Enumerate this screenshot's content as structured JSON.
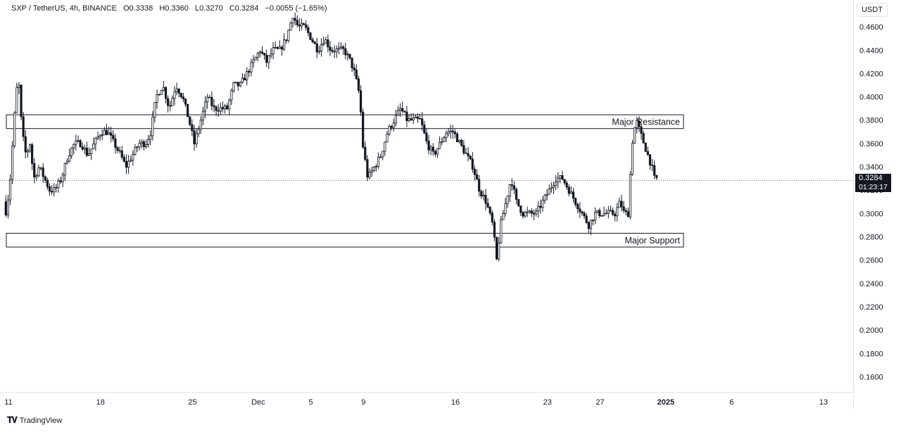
{
  "legend": {
    "symbol": "SXP / TetherUS, 4h, BINANCE",
    "open": "O0.3338",
    "high": "H0.3360",
    "low": "L0.3270",
    "close": "C0.3284",
    "change": "−0.0055 (−1.65%)"
  },
  "currency": "USDT",
  "last_price": {
    "value": "0.3284",
    "countdown": "01:23:17"
  },
  "footer": {
    "brand": "TradingView"
  },
  "chart_data": {
    "type": "candlestick",
    "symbol": "SXP / TetherUS",
    "interval": "4h",
    "exchange": "BINANCE",
    "y_ticks": [
      0.46,
      0.44,
      0.42,
      0.4,
      0.38,
      0.36,
      0.34,
      0.32,
      0.3,
      0.28,
      0.26,
      0.24,
      0.22,
      0.2,
      0.18,
      0.16
    ],
    "y_tick_labels": [
      "0.4600",
      "0.4400",
      "0.4200",
      "0.4000",
      "0.3800",
      "0.3600",
      "0.3400",
      "0.3200",
      "0.3000",
      "0.2800",
      "0.2600",
      "0.2400",
      "0.2200",
      "0.2000",
      "0.1800",
      "0.1600"
    ],
    "ylim": [
      0.147,
      0.483
    ],
    "x_ticks": [
      {
        "day": 11,
        "label": "11"
      },
      {
        "day": 18,
        "label": "18"
      },
      {
        "day": 25,
        "label": "25"
      },
      {
        "day": 30,
        "label": "Dec"
      },
      {
        "day": 34,
        "label": "5"
      },
      {
        "day": 38,
        "label": "9"
      },
      {
        "day": 45,
        "label": "16"
      },
      {
        "day": 52,
        "label": "23"
      },
      {
        "day": 56,
        "label": "27"
      },
      {
        "day": 61,
        "label": "2025"
      },
      {
        "day": 66,
        "label": "6"
      },
      {
        "day": 73,
        "label": "13"
      }
    ],
    "zones": [
      {
        "label": "Major Resistance",
        "top": 0.3846,
        "bottom": 0.3728
      },
      {
        "label": "Major Support",
        "top": 0.283,
        "bottom": 0.2712
      }
    ],
    "price_line": 0.3284,
    "price_anchors": [
      [
        10.8,
        0.31
      ],
      [
        11.0,
        0.3
      ],
      [
        11.3,
        0.33
      ],
      [
        11.6,
        0.38
      ],
      [
        11.9,
        0.42
      ],
      [
        12.2,
        0.37
      ],
      [
        12.5,
        0.35
      ],
      [
        12.8,
        0.36
      ],
      [
        13.1,
        0.33
      ],
      [
        13.5,
        0.34
      ],
      [
        13.9,
        0.33
      ],
      [
        14.3,
        0.32
      ],
      [
        14.7,
        0.32
      ],
      [
        15.2,
        0.33
      ],
      [
        15.7,
        0.35
      ],
      [
        16.2,
        0.36
      ],
      [
        16.7,
        0.36
      ],
      [
        17.2,
        0.35
      ],
      [
        17.7,
        0.36
      ],
      [
        18.2,
        0.37
      ],
      [
        18.7,
        0.37
      ],
      [
        19.2,
        0.36
      ],
      [
        19.7,
        0.35
      ],
      [
        20.1,
        0.34
      ],
      [
        20.6,
        0.35
      ],
      [
        21.1,
        0.36
      ],
      [
        21.6,
        0.36
      ],
      [
        22.0,
        0.37
      ],
      [
        22.4,
        0.4
      ],
      [
        22.9,
        0.41
      ],
      [
        23.4,
        0.39
      ],
      [
        23.9,
        0.41
      ],
      [
        24.4,
        0.4
      ],
      [
        24.9,
        0.38
      ],
      [
        25.3,
        0.36
      ],
      [
        25.8,
        0.38
      ],
      [
        26.3,
        0.4
      ],
      [
        26.8,
        0.39
      ],
      [
        27.3,
        0.39
      ],
      [
        27.8,
        0.39
      ],
      [
        28.3,
        0.41
      ],
      [
        28.8,
        0.41
      ],
      [
        29.3,
        0.42
      ],
      [
        29.8,
        0.43
      ],
      [
        30.3,
        0.44
      ],
      [
        30.8,
        0.43
      ],
      [
        31.3,
        0.44
      ],
      [
        31.8,
        0.44
      ],
      [
        32.3,
        0.45
      ],
      [
        32.8,
        0.47
      ],
      [
        33.2,
        0.46
      ],
      [
        33.7,
        0.46
      ],
      [
        34.2,
        0.45
      ],
      [
        34.7,
        0.44
      ],
      [
        35.2,
        0.45
      ],
      [
        35.7,
        0.44
      ],
      [
        36.2,
        0.44
      ],
      [
        36.7,
        0.44
      ],
      [
        37.2,
        0.43
      ],
      [
        37.5,
        0.42
      ],
      [
        37.9,
        0.4
      ],
      [
        38.1,
        0.36
      ],
      [
        38.5,
        0.33
      ],
      [
        39.0,
        0.34
      ],
      [
        39.5,
        0.35
      ],
      [
        40.0,
        0.37
      ],
      [
        40.5,
        0.38
      ],
      [
        41.0,
        0.39
      ],
      [
        41.5,
        0.38
      ],
      [
        42.0,
        0.38
      ],
      [
        42.5,
        0.38
      ],
      [
        43.0,
        0.36
      ],
      [
        43.5,
        0.35
      ],
      [
        44.0,
        0.36
      ],
      [
        44.5,
        0.37
      ],
      [
        45.0,
        0.37
      ],
      [
        45.5,
        0.36
      ],
      [
        46.0,
        0.35
      ],
      [
        46.5,
        0.34
      ],
      [
        47.0,
        0.32
      ],
      [
        47.5,
        0.31
      ],
      [
        48.0,
        0.29
      ],
      [
        48.3,
        0.26
      ],
      [
        48.6,
        0.29
      ],
      [
        49.0,
        0.31
      ],
      [
        49.4,
        0.33
      ],
      [
        49.8,
        0.31
      ],
      [
        50.3,
        0.3
      ],
      [
        50.8,
        0.3
      ],
      [
        51.3,
        0.3
      ],
      [
        51.8,
        0.31
      ],
      [
        52.3,
        0.32
      ],
      [
        52.8,
        0.33
      ],
      [
        53.3,
        0.33
      ],
      [
        53.8,
        0.32
      ],
      [
        54.3,
        0.31
      ],
      [
        54.8,
        0.3
      ],
      [
        55.3,
        0.29
      ],
      [
        55.8,
        0.3
      ],
      [
        56.3,
        0.3
      ],
      [
        56.8,
        0.3
      ],
      [
        57.3,
        0.3
      ],
      [
        57.7,
        0.31
      ],
      [
        58.0,
        0.3
      ],
      [
        58.3,
        0.3
      ],
      [
        58.6,
        0.36
      ],
      [
        58.9,
        0.38
      ],
      [
        59.2,
        0.37
      ],
      [
        59.5,
        0.36
      ],
      [
        59.8,
        0.35
      ],
      [
        60.1,
        0.34
      ],
      [
        60.3,
        0.33
      ]
    ]
  }
}
